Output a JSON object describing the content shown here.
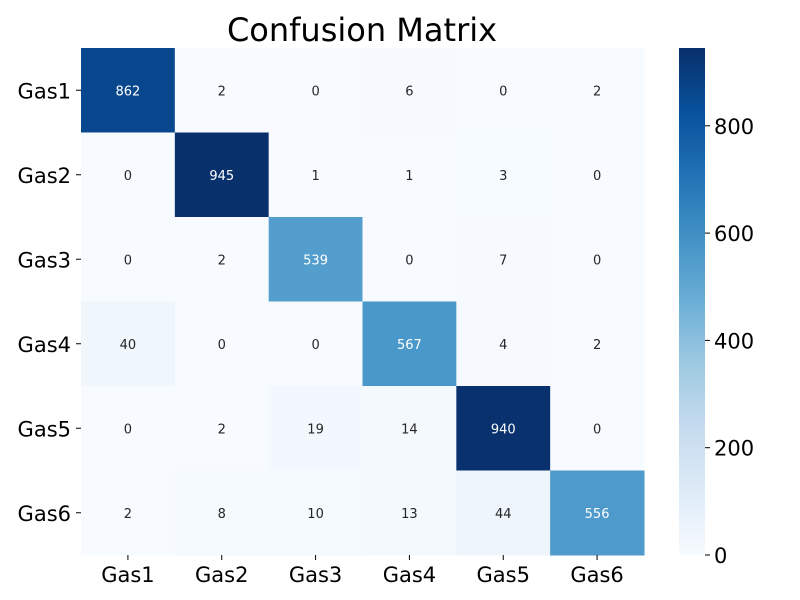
{
  "chart_data": {
    "type": "heatmap",
    "title": "Confusion Matrix",
    "xlabel": "",
    "ylabel": "",
    "x_categories": [
      "Gas1",
      "Gas2",
      "Gas3",
      "Gas4",
      "Gas5",
      "Gas6"
    ],
    "y_categories": [
      "Gas1",
      "Gas2",
      "Gas3",
      "Gas4",
      "Gas5",
      "Gas6"
    ],
    "values": [
      [
        862,
        2,
        0,
        6,
        0,
        2
      ],
      [
        0,
        945,
        1,
        1,
        3,
        0
      ],
      [
        0,
        2,
        539,
        0,
        7,
        0
      ],
      [
        40,
        0,
        0,
        567,
        4,
        2
      ],
      [
        0,
        2,
        19,
        14,
        940,
        0
      ],
      [
        2,
        8,
        10,
        13,
        44,
        556
      ]
    ],
    "colormap": "Blues",
    "color_range": [
      0,
      945
    ],
    "colorbar_ticks": [
      0,
      200,
      400,
      600,
      800
    ],
    "grid": false,
    "colorbar_position": "right"
  }
}
